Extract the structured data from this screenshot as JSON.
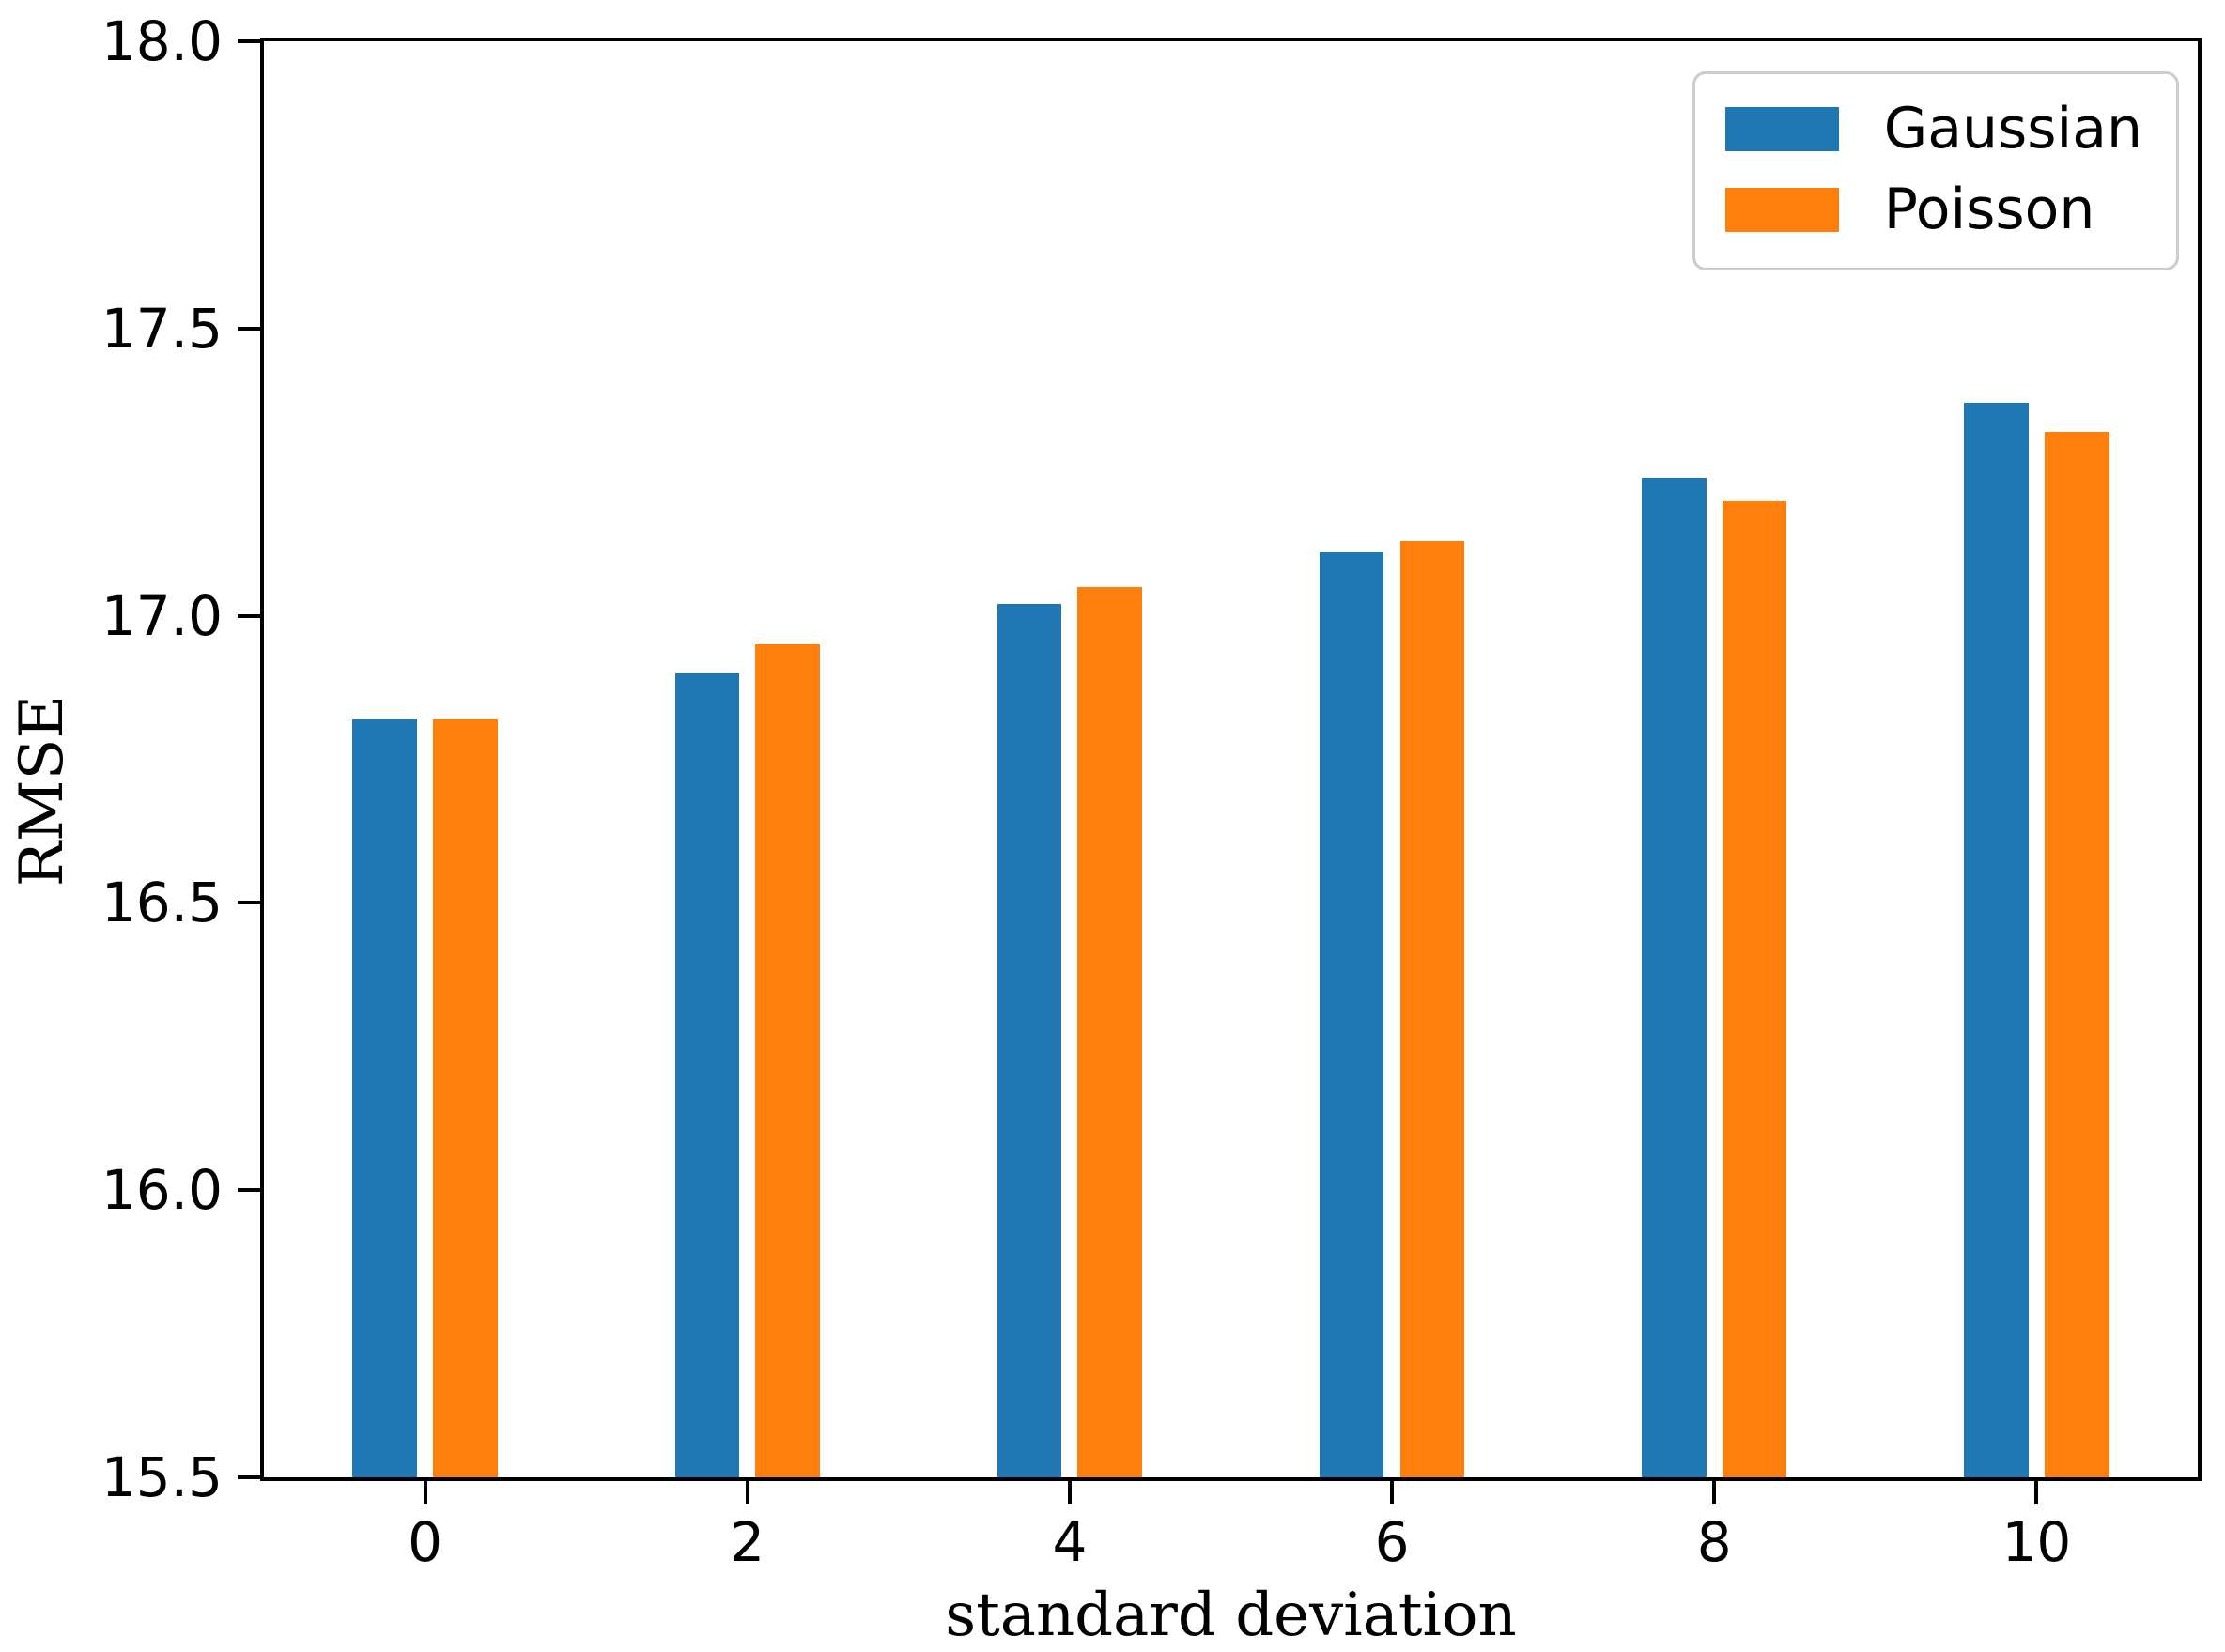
{
  "chart_data": {
    "type": "bar",
    "title": "",
    "xlabel": "standard deviation",
    "ylabel": "RMSE",
    "categories": [
      0,
      2,
      4,
      6,
      8,
      10
    ],
    "x_tick_labels": [
      "0",
      "2",
      "4",
      "6",
      "8",
      "10"
    ],
    "y_tick_values": [
      15.5,
      16.0,
      16.5,
      17.0,
      17.5,
      18.0
    ],
    "y_tick_labels": [
      "15.5",
      "16.0",
      "16.5",
      "17.0",
      "17.5",
      "18.0"
    ],
    "xlim": [
      -1,
      11
    ],
    "ylim": [
      15.5,
      18.0
    ],
    "bar_width": 0.4,
    "bar_offsets": [
      -0.25,
      0.25
    ],
    "grid": false,
    "legend_position": "upper right",
    "series": [
      {
        "name": "Gaussian",
        "color": "#1f77b4",
        "values": [
          16.82,
          16.9,
          17.02,
          17.11,
          17.24,
          17.37
        ]
      },
      {
        "name": "Poisson",
        "color": "#ff7f0e",
        "values": [
          16.82,
          16.95,
          17.05,
          17.13,
          17.2,
          17.32
        ]
      }
    ]
  }
}
